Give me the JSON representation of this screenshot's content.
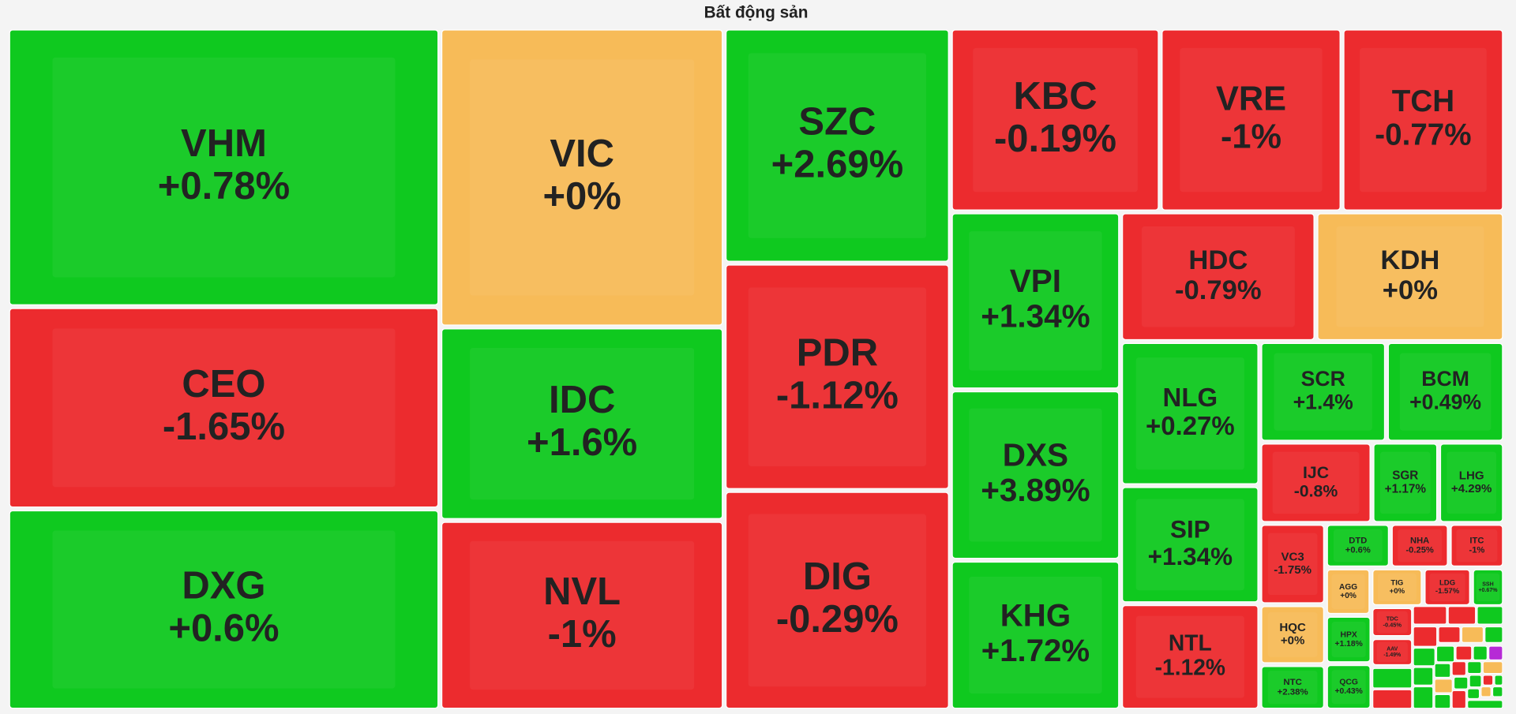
{
  "chart_data": {
    "type": "treemap",
    "title": "Bất động sản",
    "categories": [
      "VHM",
      "CEO",
      "DXG",
      "VIC",
      "IDC",
      "NVL",
      "SZC",
      "PDR",
      "DIG",
      "KBC",
      "VRE",
      "TCH",
      "VPI",
      "DXS",
      "KHG",
      "HDC",
      "KDH",
      "NLG",
      "SIP",
      "NTL",
      "SCR",
      "BCM",
      "IJC",
      "SGR",
      "LHG",
      "VC3",
      "DTD",
      "NHA",
      "ITC",
      "AGG",
      "TIG",
      "LDG",
      "SSH",
      "HQC",
      "HPX",
      "TDC",
      "AAV",
      "NTC",
      "QCG"
    ],
    "values": [
      0.78,
      -1.65,
      0.6,
      0,
      1.6,
      -1,
      2.69,
      -1.12,
      -0.29,
      -0.19,
      -1,
      -0.77,
      1.34,
      3.89,
      1.72,
      -0.79,
      0,
      0.27,
      1.34,
      -1.12,
      1.4,
      0.49,
      -0.8,
      1.17,
      4.29,
      -1.75,
      0.6,
      -0.25,
      -1,
      0,
      0,
      -1.57,
      0.67,
      0,
      1.18,
      -0.45,
      -1.49,
      2.38,
      0.43
    ],
    "value_labels": [
      "+0.78%",
      "-1.65%",
      "+0.6%",
      "+0%",
      "+1.6%",
      "-1%",
      "+2.69%",
      "-1.12%",
      "-0.29%",
      "-0.19%",
      "-1%",
      "-0.77%",
      "+1.34%",
      "+3.89%",
      "+1.72%",
      "-0.79%",
      "+0%",
      "+0.27%",
      "+1.34%",
      "-1.12%",
      "+1.4%",
      "+0.49%",
      "-0.8%",
      "+1.17%",
      "+4.29%",
      "-1.75%",
      "+0.6%",
      "-0.25%",
      "-1%",
      "+0%",
      "+0%",
      "-1.57%",
      "+0.67%",
      "+0%",
      "+1.18%",
      "-0.45%",
      "-1.49%",
      "+2.38%",
      "+0.43%"
    ],
    "colors": {
      "up": "#0fc91f",
      "down": "#ec2b2e",
      "flat": "#f7bb58"
    }
  }
}
